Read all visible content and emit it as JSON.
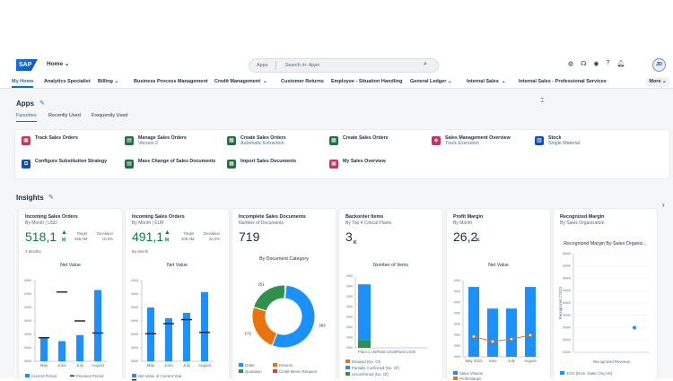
{
  "shell": {
    "logo": "SAP",
    "home": "Home",
    "search_scope": "Apps",
    "search_placeholder": "Search in: Apps",
    "avatar": "JD"
  },
  "nav": [
    "My Home",
    "Analytics Specialist",
    "Billing",
    "Business Process Management",
    "Credit Management",
    "Customer Returns",
    "Employee - Situation Handling",
    "General Ledger",
    "Internal Sales",
    "Internal Sales - Professional Services"
  ],
  "nav_more": "More",
  "apps_section": {
    "title": "Apps",
    "tabs": [
      "Favorites",
      "Recently Used",
      "Frequently Used"
    ]
  },
  "apps": [
    {
      "title": "Track Sales Orders",
      "sub": "",
      "color": "#d12f5b"
    },
    {
      "title": "Manage Sales Orders",
      "sub": "Version 2",
      "color": "#1f6f43"
    },
    {
      "title": "Create Sales Orders",
      "sub": "Automatic Extraction",
      "color": "#1f6f43"
    },
    {
      "title": "Create Sales Orders",
      "sub": "",
      "color": "#1f6f43"
    },
    {
      "title": "Sales Management Overview",
      "sub": "Track Execution",
      "color": "#d12f5b"
    },
    {
      "title": "Stock",
      "sub": "Single Material",
      "color": "#0a4fb5"
    },
    {
      "title": "Configure Substitution Strategy",
      "sub": "",
      "color": "#0a4fb5"
    },
    {
      "title": "Mass Change of Sales Documents",
      "sub": "",
      "color": "#1f6f43"
    },
    {
      "title": "Import Sales Documents",
      "sub": "",
      "color": "#1f6f43"
    },
    {
      "title": "My Sales Overview",
      "sub": "",
      "color": "#d12f5b"
    }
  ],
  "insights_title": "Insights",
  "cards": [
    {
      "title": "Incoming Sales Orders",
      "sub": "By Month | USD",
      "kpi": "518,1",
      "unit": "M",
      "target_label": "Target",
      "target": "469,0M",
      "dev_label": "Deviation",
      "dev": "10,5%",
      "extra": "4 Months",
      "chart_title": "Net Value",
      "legend": [
        "Current Period",
        "Previous Period"
      ]
    },
    {
      "title": "Incoming Sales Orders",
      "sub": "By Month | EUR",
      "kpi": "491,1",
      "unit": "M",
      "target_label": "Target",
      "target": "409,3M",
      "dev_label": "Deviation",
      "dev": "20,0%",
      "extra": "By Month",
      "chart_title": "Net Value",
      "legend": [
        "Net Value of Current Year",
        "Net Value of Previous Year"
      ]
    },
    {
      "title": "Incomplete Sales Documents",
      "sub": "Number of Documents",
      "kpi": "719",
      "chart_title": "By Document Category",
      "legend": [
        "Order",
        "Returns",
        "Quotation",
        "Credit Memo Request"
      ]
    },
    {
      "title": "Backorder Items",
      "sub": "By Top 4 Critical Plants",
      "kpi": "3",
      "unit": "K",
      "chart_title": "Number of Items",
      "legend": [
        "Delayed (No. Of)",
        "Partially Confirmed (No. Of)",
        "Unconfirmed (No. Of)"
      ]
    },
    {
      "title": "Profit Margin",
      "sub": "By Month",
      "kpi": "26,2",
      "unit": "%",
      "chart_title": "Net Value",
      "legend": [
        "Sales Volume",
        "Profit Margin"
      ]
    },
    {
      "title": "Recognized Margin",
      "sub": "By Sales Organization",
      "chart_title": "Recognized Margin By Sales Organiz...",
      "ylabel": "Recognized COGS",
      "xlabel": "Recognized Revenue",
      "legend": [
        "1710 (Dom. Sales Org US)"
      ]
    }
  ],
  "chart_data": [
    {
      "type": "bar",
      "title": "Net Value",
      "categories": [
        "May",
        "June",
        "July",
        "August"
      ],
      "series": [
        {
          "name": "Current Period",
          "values": [
            36,
            30,
            39,
            106
          ]
        },
        {
          "name": "Previous Period",
          "values": [
            35,
            103,
            60,
            42
          ]
        }
      ],
      "ylim": [
        0,
        120
      ]
    },
    {
      "type": "bar",
      "title": "Net Value",
      "categories": [
        "May",
        "June",
        "July",
        "August"
      ],
      "series": [
        {
          "name": "Net Value of Current Year",
          "values": [
            80,
            64,
            72,
            103
          ]
        },
        {
          "name": "Net Value of Previous Year",
          "values": [
            41,
            56,
            62,
            43
          ]
        }
      ],
      "ylim": [
        0,
        120
      ]
    },
    {
      "type": "pie",
      "title": "By Document Category",
      "labels": [
        "Order",
        "Returns",
        "Quotation",
        "Credit Memo Request"
      ],
      "values": [
        393,
        172,
        151,
        3
      ]
    },
    {
      "type": "bar",
      "title": "Number of Items",
      "categories": [
        "Plant 1 US",
        "Plant US20",
        "Plant US30"
      ],
      "series": [
        {
          "name": "Delayed (No. Of)",
          "values": [
            7,
            0,
            0
          ]
        },
        {
          "name": "Partially Confirmed (No. Of)",
          "values": [
            0,
            0,
            0
          ]
        },
        {
          "name": "Unconfirmed (No. Of)",
          "values": [
            55,
            0,
            0
          ]
        }
      ],
      "ylim": [
        0,
        70
      ]
    },
    {
      "type": "bar",
      "title": "Net Value",
      "categories": [
        "May 2022",
        "June",
        "July",
        "August"
      ],
      "series": [
        {
          "name": "Sales Volume",
          "values": [
            55,
            38,
            38,
            55
          ]
        },
        {
          "name": "Profit Margin",
          "values": [
            16,
            12,
            14,
            17
          ]
        }
      ],
      "ylim": [
        0,
        60
      ]
    },
    {
      "type": "scatter",
      "title": "Recognized Margin By Sales Organiz...",
      "xlabel": "Recognized Revenue",
      "ylabel": "Recognized COGS",
      "series": [
        {
          "name": "1710 (Dom. Sales Org US)",
          "x": [
            0.8
          ],
          "y": [
            0.25
          ]
        }
      ]
    }
  ]
}
